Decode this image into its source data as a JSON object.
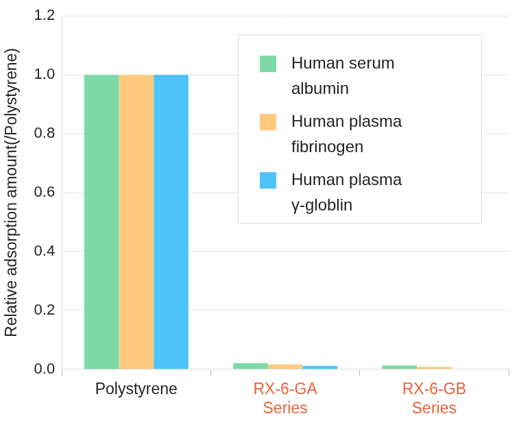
{
  "chart_data": {
    "type": "bar",
    "y_label": "Relative adsorption amount(/Polystyrene)",
    "categories": [
      "Polystyrene",
      "RX-6-GA Series",
      "RX-6-GB Series"
    ],
    "series": [
      {
        "name": "Human serum albumin",
        "color": "#7ddaa6",
        "values": [
          1.0,
          0.021,
          0.013
        ]
      },
      {
        "name": "Human plasma fibrinogen",
        "color": "#ffca80",
        "values": [
          1.0,
          0.017,
          0.008
        ]
      },
      {
        "name": "Human plasma γ-globlin",
        "color": "#4dc3fa",
        "values": [
          1.0,
          0.012,
          0.0
        ]
      }
    ],
    "ylim": [
      0,
      1.2
    ],
    "yticks": [
      {
        "value": 0,
        "label": "0.0"
      },
      0.2,
      0.4,
      0.6,
      0.8,
      {
        "value": 1,
        "label": "1.0"
      },
      1.2
    ],
    "grid": true,
    "legend": "upper right"
  }
}
